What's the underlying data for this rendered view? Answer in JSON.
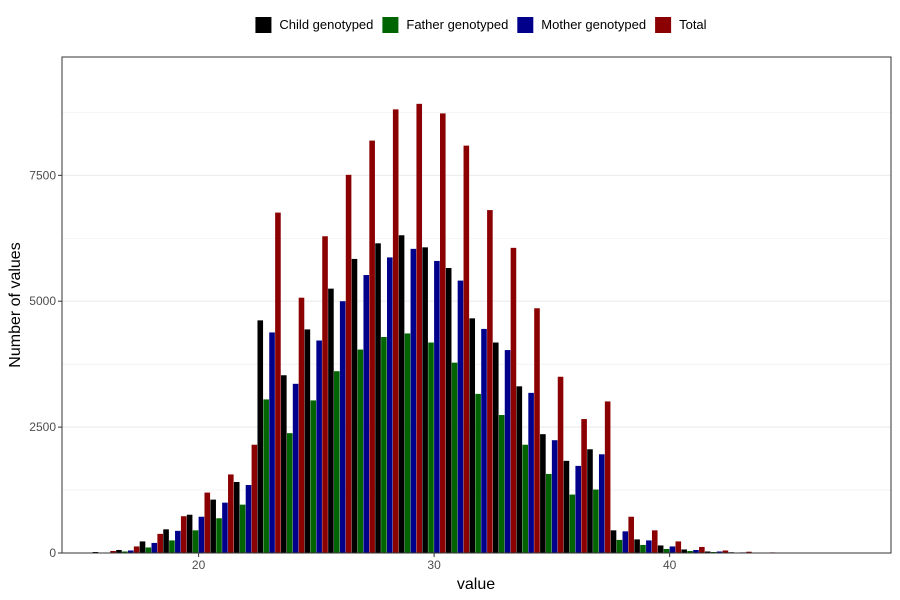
{
  "chart_data": {
    "type": "bar",
    "title": "",
    "xlabel": "value",
    "ylabel": "Number of values",
    "xlim": [
      14.2,
      49.4
    ],
    "ylim": [
      0,
      9850
    ],
    "xticks": [
      20,
      30,
      40
    ],
    "yticks": [
      0,
      2500,
      5000,
      7500
    ],
    "grid": true,
    "legend_position": "top",
    "x": [
      16,
      17,
      18,
      19,
      20,
      21,
      22,
      23,
      24,
      25,
      26,
      27,
      28,
      29,
      30,
      31,
      32,
      33,
      34,
      35,
      36,
      37,
      38,
      39,
      40,
      41,
      42,
      43,
      44,
      45,
      46
    ],
    "series": [
      {
        "name": "Child genotyped",
        "color": "#000000",
        "values": [
          20,
          60,
          230,
          470,
          760,
          1060,
          1410,
          4620,
          3530,
          4440,
          5250,
          5840,
          6150,
          6310,
          6070,
          5660,
          4660,
          4180,
          3310,
          2360,
          1830,
          2060,
          450,
          270,
          150,
          70,
          30,
          15,
          8,
          4,
          2
        ]
      },
      {
        "name": "Father genotyped",
        "color": "#006400",
        "values": [
          5,
          30,
          110,
          250,
          450,
          690,
          960,
          3050,
          2380,
          3030,
          3610,
          4040,
          4290,
          4360,
          4180,
          3780,
          3160,
          2740,
          2150,
          1570,
          1160,
          1260,
          260,
          160,
          80,
          40,
          20,
          8,
          4,
          2,
          1
        ]
      },
      {
        "name": "Mother genotyped",
        "color": "#00008B",
        "values": [
          10,
          50,
          200,
          440,
          720,
          1000,
          1350,
          4380,
          3360,
          4220,
          5000,
          5520,
          5870,
          6040,
          5800,
          5410,
          4450,
          4030,
          3180,
          2240,
          1730,
          1960,
          430,
          250,
          130,
          60,
          30,
          12,
          6,
          3,
          2
        ]
      },
      {
        "name": "Total",
        "color": "#8B0000",
        "values": [
          40,
          130,
          380,
          730,
          1200,
          1560,
          2150,
          6760,
          5070,
          6290,
          7510,
          8190,
          8810,
          8920,
          8730,
          8090,
          6810,
          6060,
          4860,
          3500,
          2660,
          3010,
          720,
          450,
          230,
          120,
          50,
          25,
          12,
          6,
          3
        ]
      }
    ]
  }
}
